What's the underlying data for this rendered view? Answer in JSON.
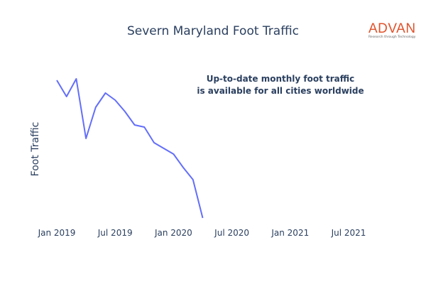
{
  "chart_data": {
    "type": "line",
    "title": "Severn Maryland Foot Traffic",
    "xlabel": "",
    "ylabel": "Foot Traffic",
    "x": [
      "2019-01",
      "2019-02",
      "2019-03",
      "2019-04",
      "2019-05",
      "2019-06",
      "2019-07",
      "2019-08",
      "2019-09",
      "2019-10",
      "2019-11",
      "2019-12",
      "2020-01",
      "2020-02",
      "2020-03",
      "2020-04"
    ],
    "series": [
      {
        "name": "Foot Traffic",
        "color": "#636efa",
        "values": [
          207,
          184,
          209,
          125,
          169,
          189,
          179,
          163,
          144,
          141,
          119,
          111,
          103,
          84,
          67,
          13
        ]
      }
    ],
    "ylim": [
      0,
      230
    ],
    "xticks": [
      {
        "label": "Jan 2019",
        "month": 0
      },
      {
        "label": "Jul 2019",
        "month": 6
      },
      {
        "label": "Jan 2020",
        "month": 12
      },
      {
        "label": "Jul 2020",
        "month": 18
      },
      {
        "label": "Jan 2021",
        "month": 24
      },
      {
        "label": "Jul 2021",
        "month": 30
      }
    ],
    "annotation": [
      "Up-to-date monthly foot traffic",
      "is available for all cities worldwide"
    ],
    "grid": false
  },
  "logo": {
    "name": "ADVAN",
    "tagline": "Research through Technology"
  }
}
